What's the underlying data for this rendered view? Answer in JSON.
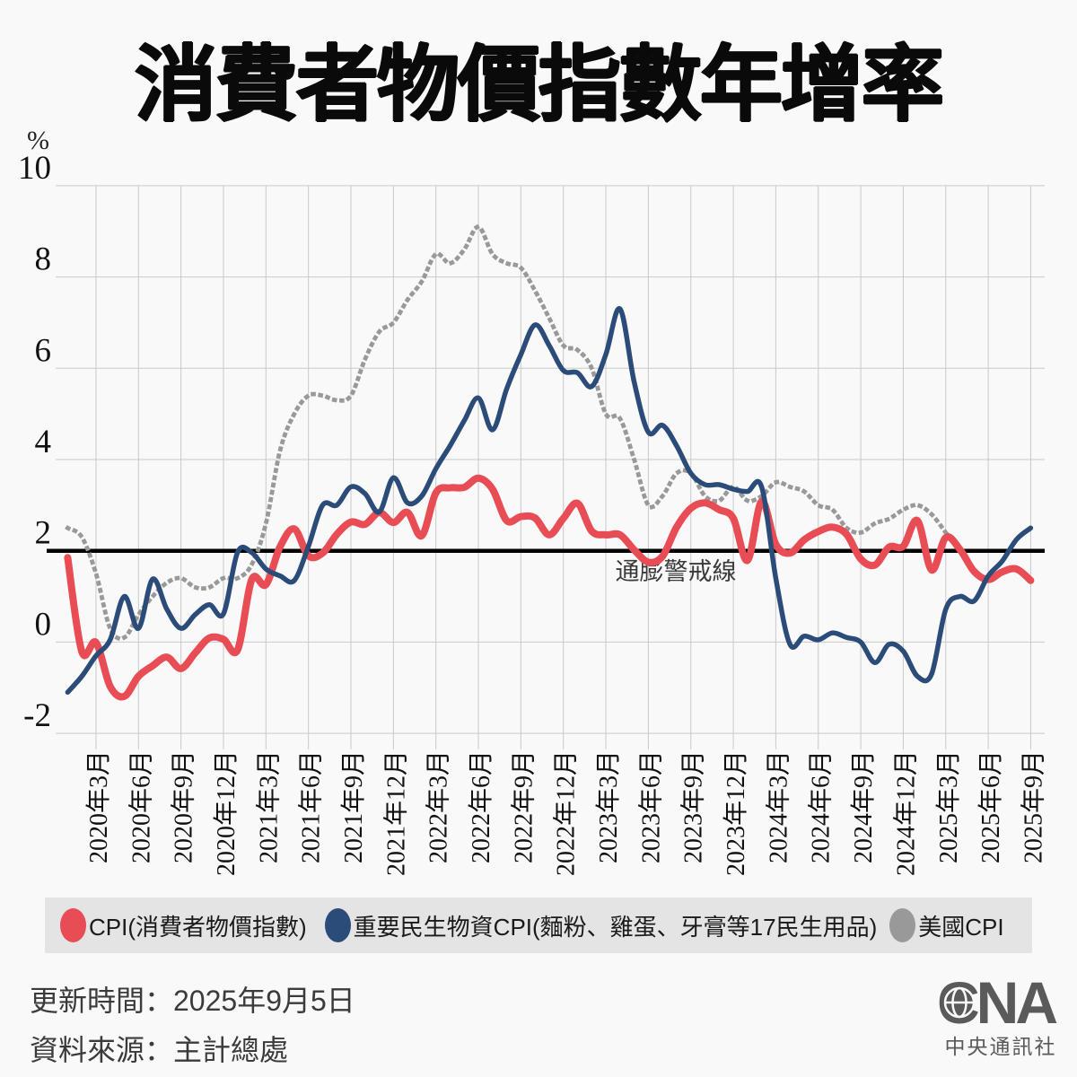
{
  "title": "消費者物價指數年增率",
  "chart_data": {
    "type": "line",
    "unit_label": "%",
    "ylim": [
      -2,
      10
    ],
    "y_ticks": [
      10,
      8,
      6,
      4,
      2,
      0,
      -2
    ],
    "x_start": "2020年1月",
    "x_tick_labels": [
      "2020年3月",
      "2020年6月",
      "2020年9月",
      "2020年12月",
      "2021年3月",
      "2021年6月",
      "2021年9月",
      "2021年12月",
      "2022年3月",
      "2022年6月",
      "2022年9月",
      "2022年12月",
      "2023年3月",
      "2023年6月",
      "2023年9月",
      "2023年12月",
      "2024年3月",
      "2024年6月",
      "2024年9月",
      "2024年12月",
      "2025年3月",
      "2025年6月",
      "2025年9月"
    ],
    "grid": true,
    "grid_color": "#c9c9c9",
    "alert_line": {
      "value": 2,
      "label": "通膨警戒線",
      "color": "#000000"
    },
    "legend_position": "bottom",
    "series": [
      {
        "name": "CPI(消費者物價指數)",
        "color": "#e84c55",
        "style": "solid",
        "width": 8,
        "values": [
          1.85,
          -0.21,
          -0.01,
          -0.97,
          -1.19,
          -0.75,
          -0.52,
          -0.33,
          -0.58,
          -0.24,
          0.09,
          0.06,
          -0.17,
          1.37,
          1.26,
          2.09,
          2.48,
          1.89,
          1.95,
          2.36,
          2.63,
          2.58,
          2.84,
          2.62,
          2.84,
          2.33,
          3.27,
          3.38,
          3.39,
          3.59,
          3.35,
          2.66,
          2.75,
          2.72,
          2.35,
          2.71,
          3.04,
          2.43,
          2.35,
          2.35,
          2.02,
          1.75,
          1.88,
          2.52,
          2.93,
          3.05,
          2.9,
          2.71,
          1.79,
          3.08,
          2.14,
          1.95,
          2.24,
          2.42,
          2.52,
          2.36,
          1.82,
          1.69,
          2.08,
          2.1,
          2.66,
          1.58,
          2.29,
          2.03,
          1.55,
          1.37,
          1.54,
          1.6,
          1.35
        ]
      },
      {
        "name": "重要民生物資CPI(麵粉、雞蛋、牙膏等17民生用品)",
        "color": "#2b4b78",
        "style": "solid",
        "width": 5.5,
        "values": [
          -1.1,
          -0.75,
          -0.3,
          0.05,
          1.0,
          0.3,
          1.38,
          0.72,
          0.3,
          0.6,
          0.82,
          0.62,
          1.97,
          1.96,
          1.6,
          1.45,
          1.35,
          2.1,
          3.0,
          3.0,
          3.4,
          3.25,
          2.85,
          3.6,
          3.05,
          3.2,
          3.8,
          4.3,
          4.85,
          5.35,
          4.65,
          5.55,
          6.3,
          6.95,
          6.5,
          5.95,
          5.9,
          5.6,
          6.3,
          7.3,
          5.7,
          4.6,
          4.75,
          4.3,
          3.7,
          3.45,
          3.45,
          3.35,
          3.3,
          3.4,
          1.4,
          -0.05,
          0.13,
          0.05,
          0.2,
          0.1,
          0.0,
          -0.45,
          -0.05,
          -0.2,
          -0.75,
          -0.7,
          0.72,
          1.0,
          0.9,
          1.45,
          1.78,
          2.25,
          2.5
        ]
      },
      {
        "name": "美國CPI",
        "color": "#999999",
        "style": "dotted",
        "width": 4.8,
        "values": [
          2.5,
          2.3,
          1.5,
          0.3,
          0.1,
          0.6,
          1.0,
          1.3,
          1.4,
          1.2,
          1.2,
          1.4,
          1.4,
          1.7,
          2.6,
          4.2,
          5.0,
          5.4,
          5.4,
          5.3,
          5.4,
          6.2,
          6.8,
          7.0,
          7.5,
          7.9,
          8.5,
          8.3,
          8.6,
          9.1,
          8.5,
          8.3,
          8.2,
          7.7,
          7.1,
          6.5,
          6.4,
          6.0,
          5.0,
          4.9,
          4.0,
          3.0,
          3.2,
          3.7,
          3.7,
          3.2,
          3.1,
          3.4,
          3.1,
          3.2,
          3.5,
          3.4,
          3.3,
          3.0,
          2.9,
          2.5,
          2.4,
          2.6,
          2.7,
          2.9,
          3.0,
          2.8,
          2.4
        ]
      }
    ]
  },
  "legend": {
    "background": "#e4e4e4"
  },
  "footer": {
    "updated": "更新時間：2025年9月5日",
    "source": "資料來源：主計總處"
  },
  "logo": {
    "brand": "CNA",
    "org": "中央通訊社",
    "color": "#5a5a5a"
  }
}
